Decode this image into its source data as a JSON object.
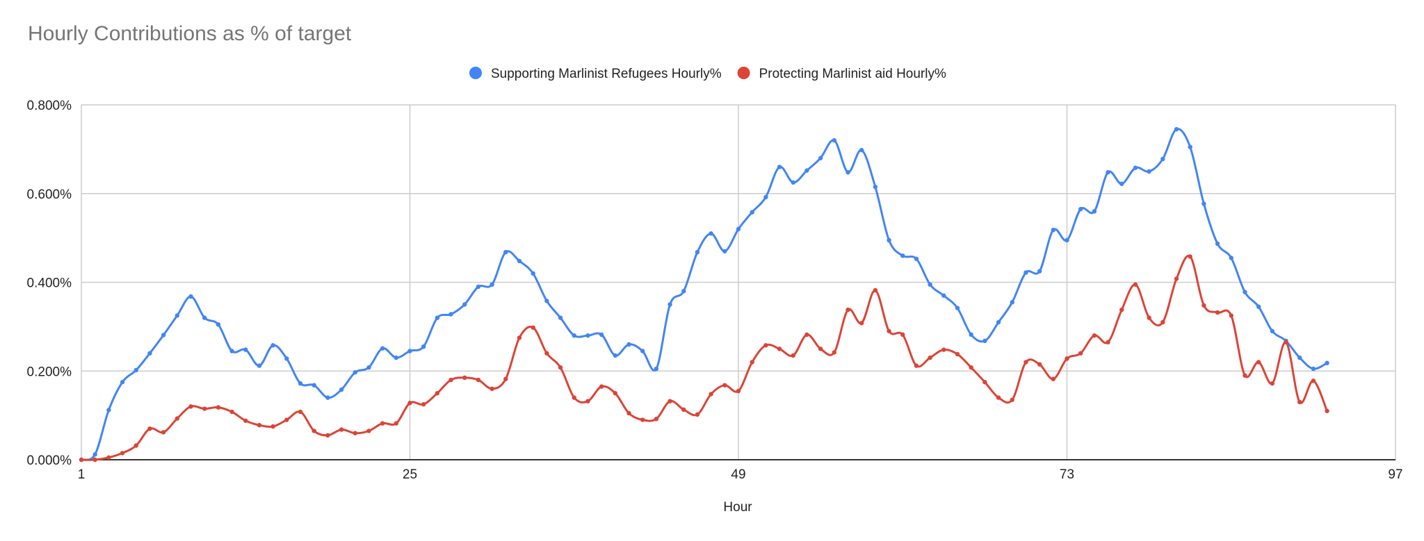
{
  "chart_data": {
    "type": "line",
    "title": "Hourly Contributions as % of target",
    "xlabel": "Hour",
    "ylabel": "",
    "xlim": [
      1,
      97
    ],
    "ylim": [
      0,
      0.8
    ],
    "x_ticks": [
      "1",
      "25",
      "49",
      "73",
      "97"
    ],
    "y_ticks": [
      "0.000%",
      "0.200%",
      "0.400%",
      "0.600%",
      "0.800%"
    ],
    "grid": true,
    "legend_position": "top-center",
    "x": [
      1,
      2,
      3,
      4,
      5,
      6,
      7,
      8,
      9,
      10,
      11,
      12,
      13,
      14,
      15,
      16,
      17,
      18,
      19,
      20,
      21,
      22,
      23,
      24,
      25,
      26,
      27,
      28,
      29,
      30,
      31,
      32,
      33,
      34,
      35,
      36,
      37,
      38,
      39,
      40,
      41,
      42,
      43,
      44,
      45,
      46,
      47,
      48,
      49,
      50,
      51,
      52,
      53,
      54,
      55,
      56,
      57,
      58,
      59,
      60,
      61,
      62,
      63,
      64,
      65,
      66,
      67,
      68,
      69,
      70,
      71,
      72,
      73,
      74,
      75,
      76,
      77,
      78,
      79,
      80,
      81,
      82,
      83,
      84,
      85,
      86,
      87,
      88,
      89,
      90,
      91,
      92
    ],
    "series": [
      {
        "name": "Supporting Marlinist Refugees Hourly%",
        "color": "#4285f4",
        "values": [
          0.0,
          0.012,
          0.112,
          0.175,
          0.202,
          0.24,
          0.281,
          0.325,
          0.368,
          0.32,
          0.305,
          0.245,
          0.248,
          0.212,
          0.258,
          0.228,
          0.172,
          0.168,
          0.14,
          0.158,
          0.197,
          0.208,
          0.251,
          0.23,
          0.245,
          0.255,
          0.32,
          0.328,
          0.35,
          0.39,
          0.395,
          0.468,
          0.448,
          0.42,
          0.358,
          0.32,
          0.28,
          0.28,
          0.282,
          0.235,
          0.26,
          0.245,
          0.205,
          0.35,
          0.38,
          0.468,
          0.51,
          0.47,
          0.52,
          0.558,
          0.592,
          0.66,
          0.625,
          0.652,
          0.68,
          0.72,
          0.648,
          0.698,
          0.615,
          0.495,
          0.46,
          0.453,
          0.395,
          0.37,
          0.342,
          0.282,
          0.268,
          0.31,
          0.355,
          0.422,
          0.425,
          0.518,
          0.495,
          0.565,
          0.56,
          0.648,
          0.622,
          0.658,
          0.65,
          0.678,
          0.745,
          0.705,
          0.577,
          0.487,
          0.455,
          0.378,
          0.345,
          0.29,
          0.268,
          0.23,
          0.205,
          0.218
        ]
      },
      {
        "name": "Protecting Marlinist aid Hourly%",
        "color": "#db4437",
        "values": [
          0.0,
          0.0,
          0.005,
          0.015,
          0.032,
          0.07,
          0.062,
          0.093,
          0.12,
          0.115,
          0.118,
          0.108,
          0.088,
          0.078,
          0.075,
          0.09,
          0.108,
          0.065,
          0.055,
          0.068,
          0.06,
          0.065,
          0.082,
          0.082,
          0.128,
          0.125,
          0.15,
          0.18,
          0.185,
          0.18,
          0.16,
          0.182,
          0.275,
          0.298,
          0.24,
          0.208,
          0.14,
          0.132,
          0.165,
          0.15,
          0.105,
          0.09,
          0.092,
          0.132,
          0.113,
          0.102,
          0.148,
          0.168,
          0.155,
          0.22,
          0.258,
          0.25,
          0.235,
          0.282,
          0.25,
          0.242,
          0.338,
          0.308,
          0.382,
          0.29,
          0.282,
          0.212,
          0.23,
          0.248,
          0.238,
          0.208,
          0.175,
          0.14,
          0.135,
          0.22,
          0.215,
          0.182,
          0.228,
          0.24,
          0.28,
          0.265,
          0.338,
          0.395,
          0.32,
          0.31,
          0.408,
          0.458,
          0.348,
          0.332,
          0.325,
          0.19,
          0.22,
          0.172,
          0.265,
          0.13,
          0.178,
          0.11
        ]
      }
    ]
  }
}
